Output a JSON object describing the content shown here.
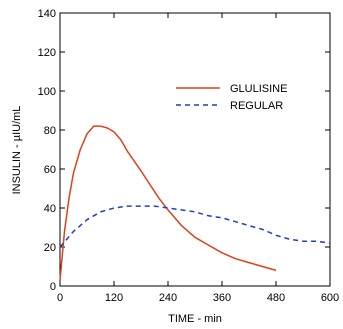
{
  "chart_data": {
    "type": "line",
    "title": "",
    "xlabel": "TIME - min",
    "ylabel": "INSULIN - µIU/mL",
    "xlim": [
      0,
      600
    ],
    "ylim": [
      0,
      140
    ],
    "xticks": [
      "0",
      "120",
      "240",
      "360",
      "480",
      "600"
    ],
    "yticks": [
      "0",
      "20",
      "40",
      "60",
      "80",
      "100",
      "120",
      "140"
    ],
    "grid": false,
    "legend": "right",
    "series": [
      {
        "name": "GLULISINE",
        "color": "#e0401a",
        "style": "solid",
        "x": [
          0,
          10,
          20,
          30,
          45,
          60,
          75,
          90,
          105,
          120,
          135,
          150,
          165,
          180,
          200,
          220,
          240,
          270,
          300,
          330,
          360,
          390,
          420,
          450,
          480
        ],
        "y": [
          3,
          28,
          45,
          58,
          70,
          78,
          82,
          82,
          81,
          79,
          75,
          69,
          64,
          59,
          52,
          45,
          39,
          31,
          25,
          21,
          17,
          14,
          12,
          10,
          8
        ]
      },
      {
        "name": "REGULAR",
        "color": "#1f3fc4",
        "style": "dashed",
        "x": [
          0,
          15,
          30,
          45,
          60,
          90,
          120,
          150,
          180,
          210,
          240,
          270,
          300,
          330,
          360,
          390,
          420,
          450,
          480,
          510,
          540,
          570,
          600
        ],
        "y": [
          20,
          24,
          28,
          31,
          34,
          38,
          40,
          41,
          41,
          41,
          40,
          39,
          38,
          36,
          35,
          33,
          31,
          29,
          26,
          24,
          23,
          23,
          22
        ]
      }
    ]
  }
}
